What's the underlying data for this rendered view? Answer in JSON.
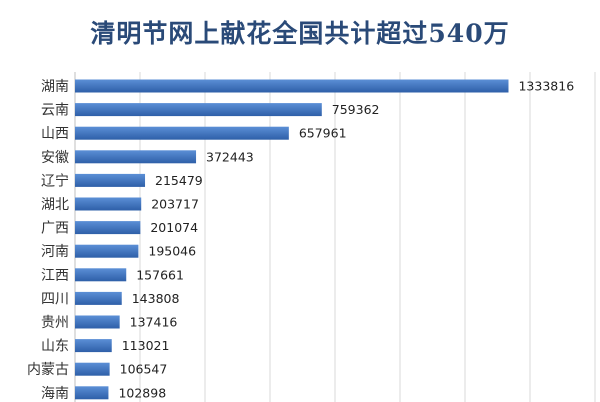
{
  "title": "清明节网上献花全国共计超过540万",
  "colors": {
    "bar_light": "#5b8fd6",
    "bar_dark": "#2e5fa8",
    "title": "#2a4a78"
  },
  "chart_data": {
    "type": "bar",
    "orientation": "horizontal",
    "title": "清明节网上献花全国共计超过540万",
    "xlabel": "",
    "ylabel": "",
    "categories": [
      "湖南",
      "云南",
      "山西",
      "安徽",
      "辽宁",
      "湖北",
      "广西",
      "河南",
      "江西",
      "四川",
      "贵州",
      "山东",
      "内蒙古",
      "海南"
    ],
    "values": [
      1333816,
      759362,
      657961,
      372443,
      215479,
      203717,
      201074,
      195046,
      157661,
      143808,
      137416,
      113021,
      106547,
      102898
    ],
    "xlim": [
      0,
      1600000
    ],
    "grid": true,
    "legend": "none",
    "data_labels": true
  }
}
